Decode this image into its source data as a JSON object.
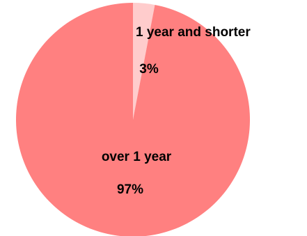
{
  "chart_data": {
    "type": "pie",
    "title": "",
    "slices": [
      {
        "label": "1 year and shorter",
        "value": 3,
        "value_label": "3%",
        "color": "#ffcccc"
      },
      {
        "label": "over 1 year",
        "value": 97,
        "value_label": "97%",
        "color": "#ff8080"
      }
    ],
    "start_angle_deg": 0,
    "direction": "clockwise",
    "legend": "none"
  }
}
